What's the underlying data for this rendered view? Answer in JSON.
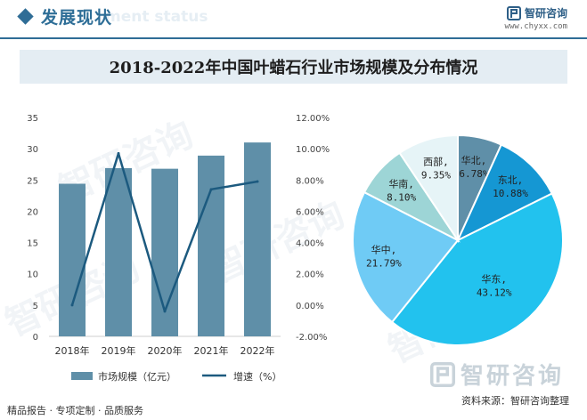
{
  "header": {
    "section_title": "发展现状",
    "section_subtitle": "ment status",
    "brand_name": "智研咨询",
    "brand_url": "www.chyxx.com"
  },
  "chart_title": "2018-2022年中国叶蜡石行业市场规模及分布情况",
  "watermark_text": "智研咨询",
  "footer": {
    "services": "精品报告 · 专项定制 · 品质服务",
    "source": "资料来源：智研咨询整理",
    "big_logo": "智研咨询"
  },
  "colors": {
    "bar": "#5f8fa8",
    "line": "#1c5a7f",
    "accent": "#2f6d96",
    "pie": [
      "#5f8fa8",
      "#1597d3",
      "#22c2ee",
      "#6fcbf5",
      "#9dd5d6",
      "#e6f4f7"
    ]
  },
  "chart_data": [
    {
      "type": "bar",
      "categories": [
        "2018年",
        "2019年",
        "2020年",
        "2021年",
        "2022年"
      ],
      "series": [
        {
          "name": "市场规模（亿元）",
          "type": "bar",
          "axis": "left",
          "values": [
            24.4,
            26.9,
            26.8,
            28.9,
            31.0
          ]
        },
        {
          "name": "增速（%）",
          "type": "line",
          "axis": "right",
          "values": [
            0.0,
            9.7,
            -0.4,
            7.4,
            7.9
          ]
        }
      ],
      "y_left": {
        "min": 0,
        "max": 35,
        "ticks": [
          0,
          5,
          10,
          15,
          20,
          25,
          30,
          35
        ]
      },
      "y_right": {
        "min": -2,
        "max": 12,
        "ticks": [
          "-2.00%",
          "0.00%",
          "2.00%",
          "4.00%",
          "6.00%",
          "8.00%",
          "10.00%",
          "12.00%"
        ]
      },
      "legend_position": "bottom"
    },
    {
      "type": "pie",
      "slices": [
        {
          "name": "华北",
          "label": "6.78%",
          "value": 6.78
        },
        {
          "name": "东北",
          "label": "10.88%",
          "value": 10.88
        },
        {
          "name": "华东",
          "label": "43.12%",
          "value": 43.12
        },
        {
          "name": "华中",
          "label": "21.79%",
          "value": 21.79
        },
        {
          "name": "华南",
          "label": "8.10%",
          "value": 8.1
        },
        {
          "name": "西部",
          "label": "9.35%",
          "value": 9.35
        }
      ]
    }
  ]
}
